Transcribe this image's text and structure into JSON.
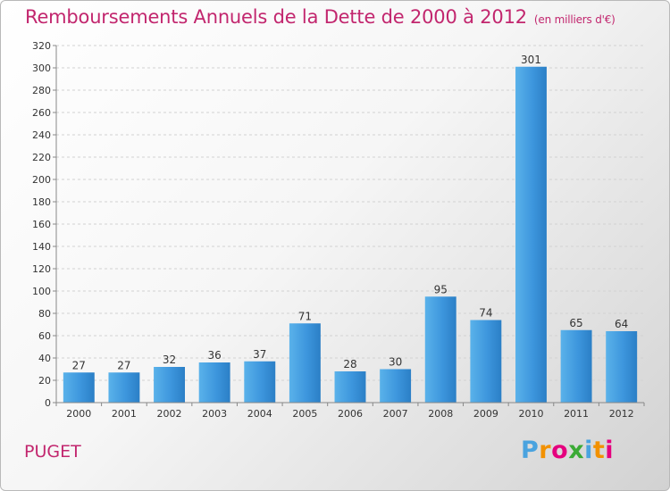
{
  "chart_data": {
    "type": "bar",
    "title": "Remboursements Annuels de la Dette de 2000 à 2012",
    "subtitle": "(en milliers d'€)",
    "categories": [
      "2000",
      "2001",
      "2002",
      "2003",
      "2004",
      "2005",
      "2006",
      "2007",
      "2008",
      "2009",
      "2010",
      "2011",
      "2012"
    ],
    "values": [
      27,
      27,
      32,
      36,
      37,
      71,
      28,
      30,
      95,
      74,
      301,
      65,
      64
    ],
    "ylim": [
      0,
      320
    ],
    "yticks": [
      0,
      20,
      40,
      60,
      80,
      100,
      120,
      140,
      160,
      180,
      200,
      220,
      240,
      260,
      280,
      300,
      320
    ],
    "grid": true,
    "bar_color": "#3d96dd"
  },
  "footer": {
    "place": "PUGET",
    "logo": [
      "P",
      "r",
      "o",
      "x",
      "i",
      "t",
      "i"
    ],
    "logo_colors": [
      "#4aa3df",
      "#f29100",
      "#e5007e",
      "#3aaa35",
      "#4aa3df",
      "#f29100",
      "#e5007e"
    ]
  }
}
